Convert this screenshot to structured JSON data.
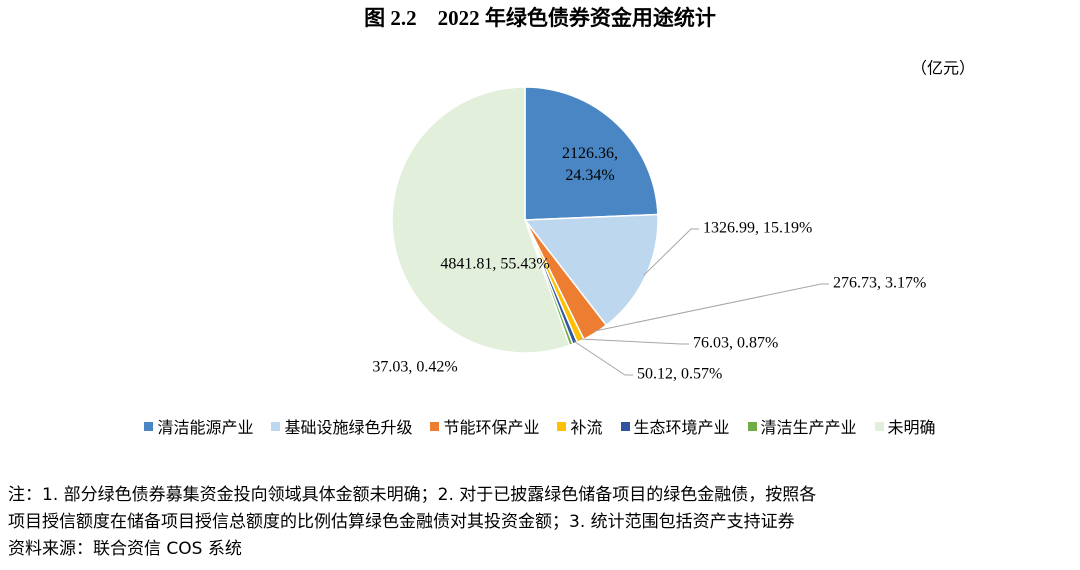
{
  "chart_data": {
    "type": "pie",
    "title": "图 2.2　2022 年绿色债券资金用途统计",
    "unit_label": "（亿元）",
    "categories": [
      "清洁能源产业",
      "基础设施绿色升级",
      "节能环保产业",
      "补流",
      "生态环境产业",
      "清洁生产产业",
      "未明确"
    ],
    "values": [
      2126.36,
      1326.99,
      276.73,
      76.03,
      50.12,
      37.03,
      4841.81
    ],
    "value_labels": [
      "2126.36, 24.34%",
      "1326.99, 15.19%",
      "276.73, 3.17%",
      "76.03, 0.87%",
      "50.12, 0.57%",
      "37.03, 0.42%",
      "4841.81, 55.43%"
    ],
    "colors": [
      "#4a86c3",
      "#bdd7ee",
      "#ed7d31",
      "#ffc000",
      "#2f55a0",
      "#70ad47",
      "#e2efda"
    ],
    "legend": "bottom",
    "notes": [
      "注：1. 部分绿色债券募集资金投向领域具体金额未明确；2. 对于已披露绿色储备项目的绿色金融债，按照各",
      "项目授信额度在储备项目授信总额度的比例估算绿色金融债对其投资金额；3. 统计范围包括资产支持证券",
      "资料来源：联合资信 COS 系统"
    ]
  }
}
